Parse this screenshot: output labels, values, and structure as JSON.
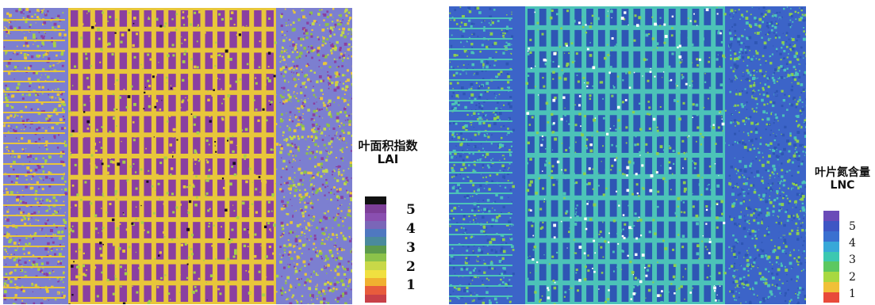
{
  "panels": [
    {
      "id": "lai",
      "legend_title": "叶面积指数",
      "legend_subtitle": "LAI",
      "ticks": [
        "5",
        "4",
        "3",
        "2",
        "1"
      ],
      "colorbar": [
        "#111111",
        "#7d3f98",
        "#8a4fb0",
        "#7a66b8",
        "#4f78c0",
        "#4a8a9c",
        "#5c9a4c",
        "#8cc24a",
        "#c8d848",
        "#f0e040",
        "#f0b030",
        "#e85c3c",
        "#c84048"
      ],
      "palette": {
        "cell": "#8a3fa0",
        "path": "#e8c63a",
        "edge": "#a6d049",
        "border": "#7c7fd0",
        "dark": "#1c0c24"
      }
    },
    {
      "id": "lnc",
      "legend_title": "叶片氮含量",
      "legend_subtitle": "LNC",
      "ticks": [
        "5",
        "4",
        "3",
        "2",
        "1"
      ],
      "colorbar": [
        "#6a4bb8",
        "#3e56c4",
        "#3a70d0",
        "#38a8d8",
        "#3cc8b0",
        "#5cc860",
        "#a8d840",
        "#f0c038",
        "#e84a3a"
      ],
      "palette": {
        "cell": "#2e56b4",
        "path": "#4cc3b8",
        "edge": "#8ccf4e",
        "border": "#3c64c8",
        "gap": "#ffffff"
      }
    }
  ]
}
